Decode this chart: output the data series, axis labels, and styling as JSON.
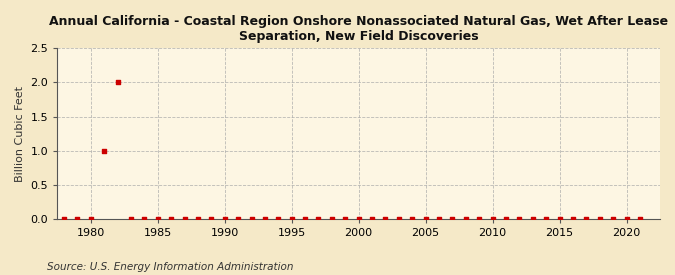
{
  "title": "Annual California - Coastal Region Onshore Nonassociated Natural Gas, Wet After Lease\nSeparation, New Field Discoveries",
  "ylabel": "Billion Cubic Feet",
  "source": "Source: U.S. Energy Information Administration",
  "background_color": "#f5e9c8",
  "plot_background_color": "#fdf6e3",
  "grid_color": "#aaaaaa",
  "marker_color": "#cc0000",
  "xlim": [
    1977.5,
    2022.5
  ],
  "ylim": [
    0,
    2.5
  ],
  "yticks": [
    0.0,
    0.5,
    1.0,
    1.5,
    2.0,
    2.5
  ],
  "xticks": [
    1980,
    1985,
    1990,
    1995,
    2000,
    2005,
    2010,
    2015,
    2020
  ],
  "years": [
    1978,
    1979,
    1980,
    1981,
    1982,
    1983,
    1984,
    1985,
    1986,
    1987,
    1988,
    1989,
    1990,
    1991,
    1992,
    1993,
    1994,
    1995,
    1996,
    1997,
    1998,
    1999,
    2000,
    2001,
    2002,
    2003,
    2004,
    2005,
    2006,
    2007,
    2008,
    2009,
    2010,
    2011,
    2012,
    2013,
    2014,
    2015,
    2016,
    2017,
    2018,
    2019,
    2020,
    2021
  ],
  "values": [
    0.0,
    0.0,
    0.0,
    1.0,
    2.0,
    0.0,
    0.0,
    0.0,
    0.0,
    0.0,
    0.0,
    0.0,
    0.0,
    0.0,
    0.0,
    0.0,
    0.0,
    0.0,
    0.0,
    0.0,
    0.0,
    0.0,
    0.0,
    0.0,
    0.0,
    0.0,
    0.0,
    0.0,
    0.0,
    0.0,
    0.0,
    0.0,
    0.0,
    0.0,
    0.0,
    0.0,
    0.0,
    0.0,
    0.0,
    0.0,
    0.0,
    0.0,
    0.0,
    0.0
  ]
}
